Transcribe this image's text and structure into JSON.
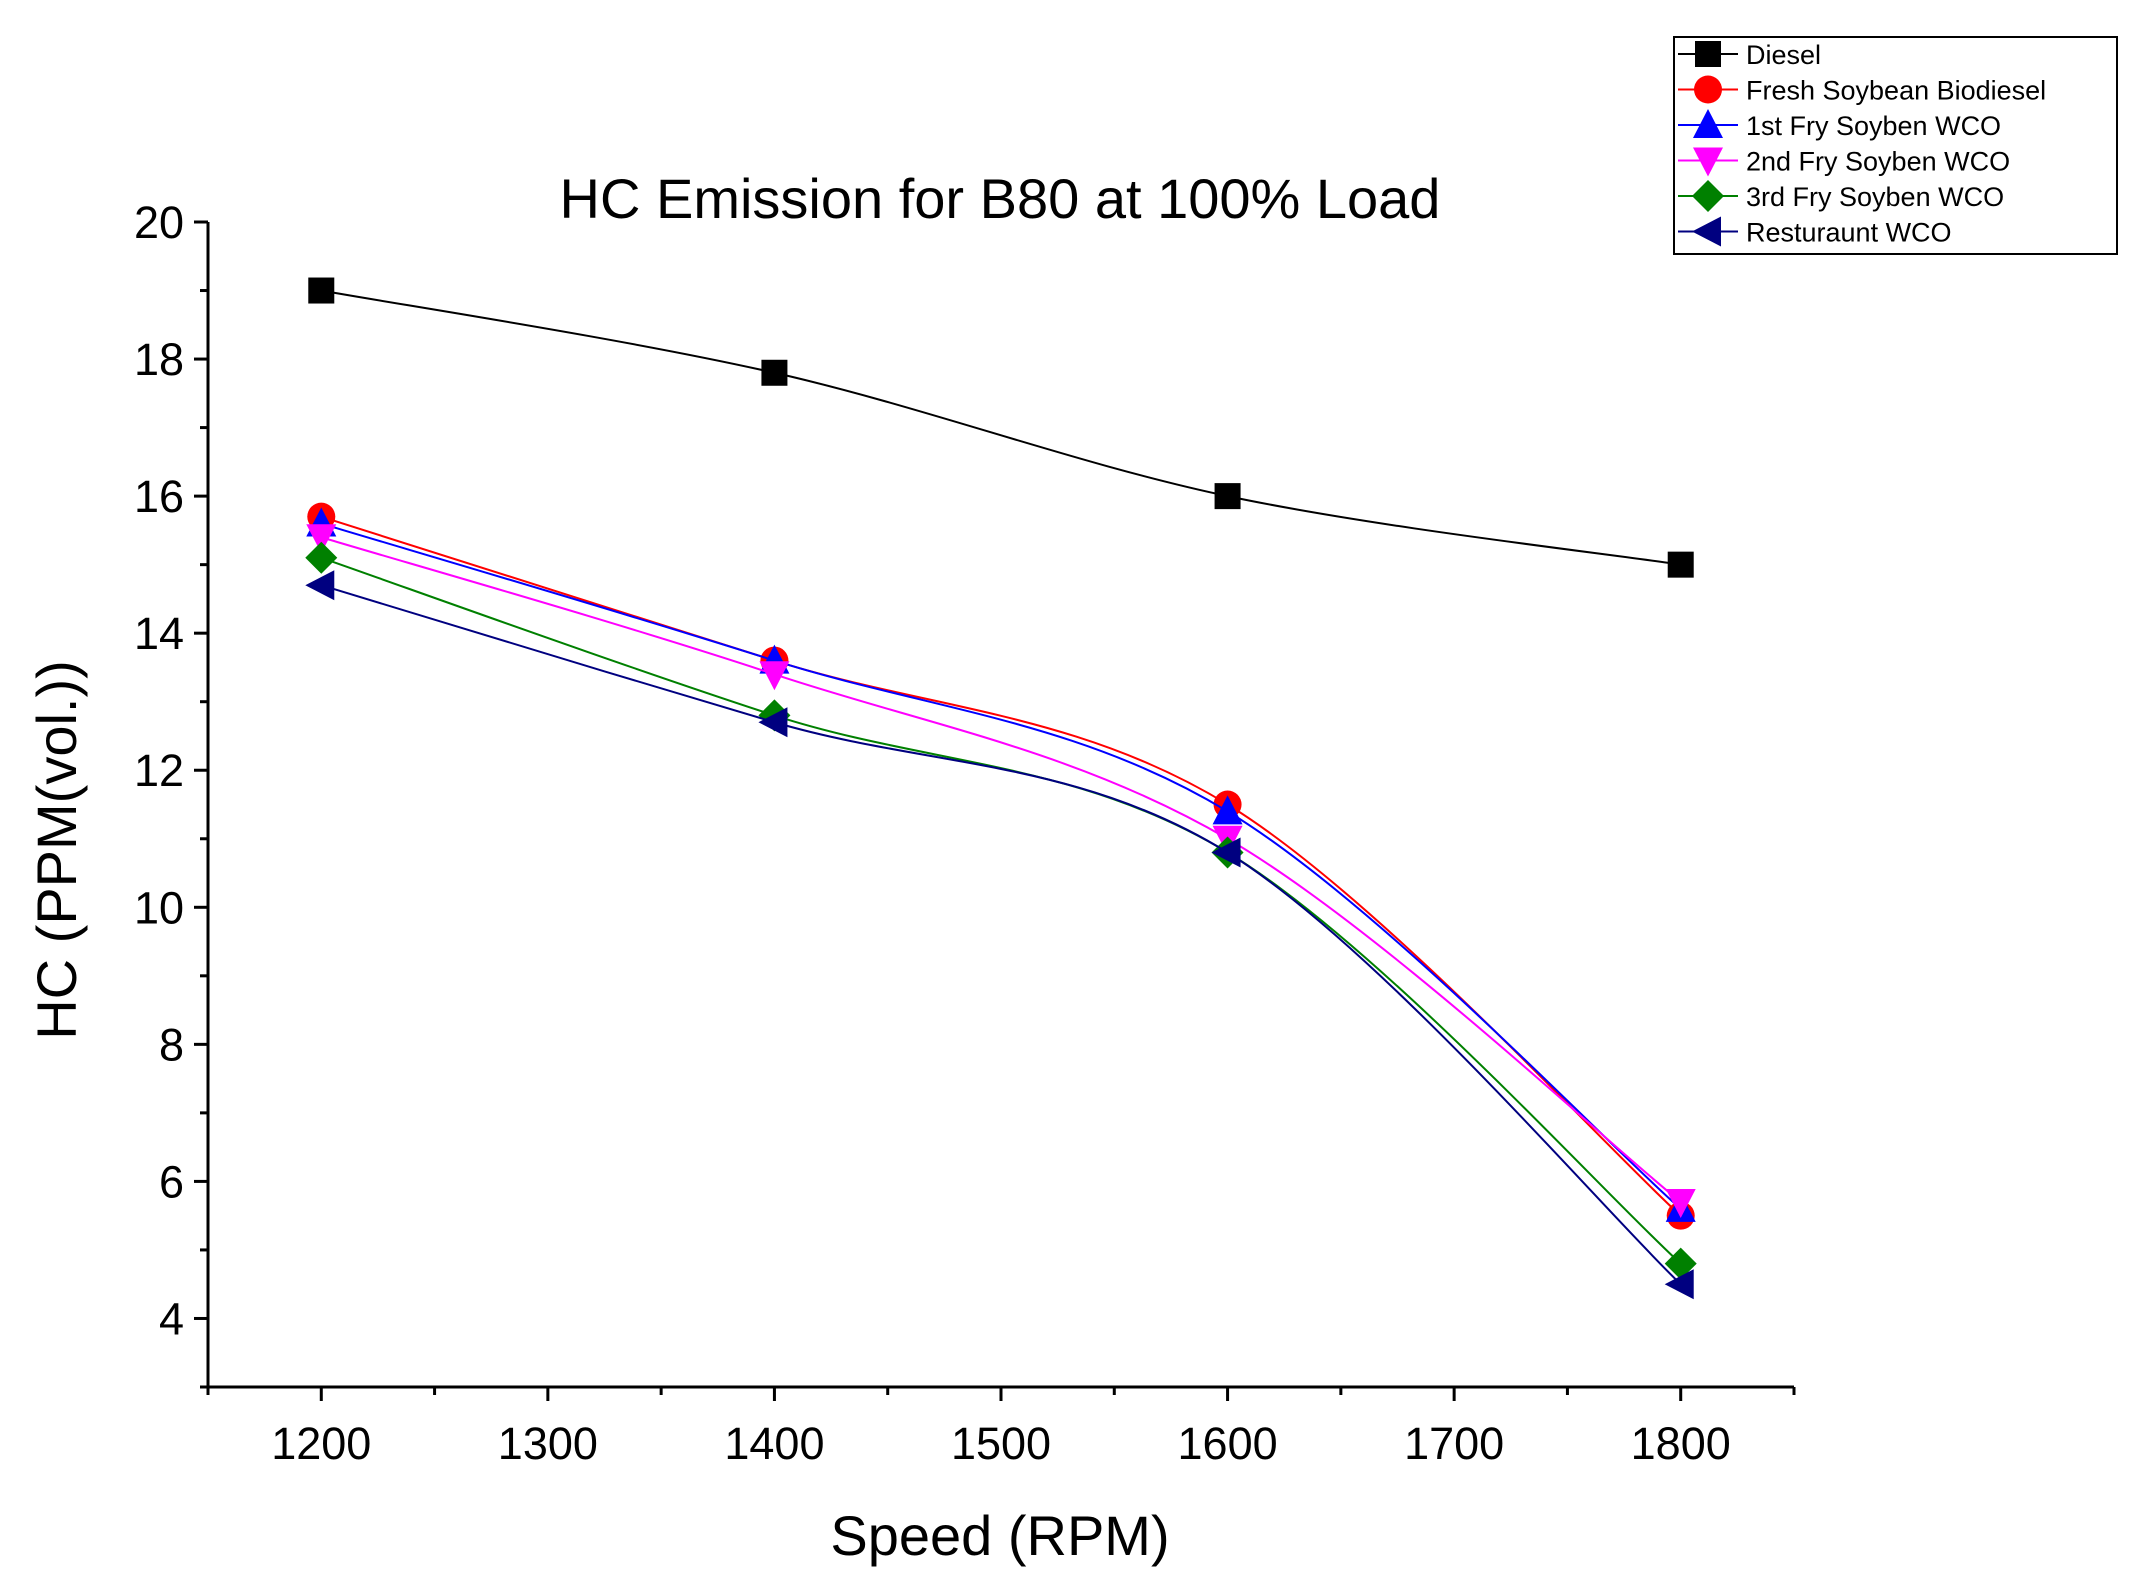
{
  "chart_data": {
    "type": "line",
    "title": "HC Emission for B80 at 100% Load",
    "xlabel": "Speed (RPM)",
    "ylabel": "HC (PPM(vol.))",
    "xlim": [
      1150,
      1850
    ],
    "ylim": [
      3,
      20
    ],
    "x_ticks": [
      1200,
      1300,
      1400,
      1500,
      1600,
      1700,
      1800
    ],
    "y_ticks": [
      4,
      6,
      8,
      10,
      12,
      14,
      16,
      18,
      20
    ],
    "x": [
      1200,
      1400,
      1600,
      1800
    ],
    "grid": false,
    "legend_position": "top-right",
    "series": [
      {
        "name": "Diesel",
        "values": [
          19.0,
          17.8,
          16.0,
          15.0
        ],
        "color": "#000000",
        "marker": "square"
      },
      {
        "name": "Fresh Soybean Biodiesel",
        "values": [
          15.7,
          13.6,
          11.5,
          5.5
        ],
        "color": "#ff0000",
        "marker": "circle"
      },
      {
        "name": "1st Fry Soyben WCO",
        "values": [
          15.6,
          13.6,
          11.4,
          5.6
        ],
        "color": "#0000ff",
        "marker": "triangle-up"
      },
      {
        "name": "2nd Fry Soyben WCO",
        "values": [
          15.4,
          13.4,
          11.0,
          5.7
        ],
        "color": "#ff00ff",
        "marker": "triangle-down"
      },
      {
        "name": "3rd Fry Soyben WCO",
        "values": [
          15.1,
          12.8,
          10.8,
          4.8
        ],
        "color": "#008000",
        "marker": "diamond"
      },
      {
        "name": "Resturaunt WCO",
        "values": [
          14.7,
          12.7,
          10.8,
          4.5
        ],
        "color": "#000080",
        "marker": "triangle-left"
      }
    ]
  }
}
